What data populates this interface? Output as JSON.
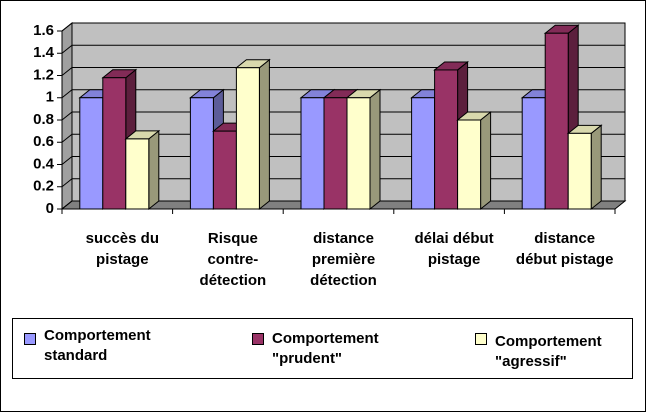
{
  "chart_data": {
    "type": "bar3d",
    "categories": [
      "succès du pistage",
      "Risque contre-détection",
      "distance première détection",
      "délai début pistage",
      "distance début pistage"
    ],
    "series": [
      {
        "name": "Comportement standard",
        "color": "#9999ff",
        "values": [
          1.0,
          1.0,
          1.0,
          1.0,
          1.0
        ]
      },
      {
        "name": "Comportement \"prudent\"",
        "color": "#993366",
        "values": [
          1.18,
          0.7,
          1.0,
          1.25,
          1.58
        ]
      },
      {
        "name": "Comportement \"agressif\"",
        "color": "#ffffcc",
        "values": [
          0.63,
          1.27,
          1.0,
          0.8,
          0.68
        ]
      }
    ],
    "ylim": [
      0,
      1.6
    ],
    "yticks": [
      0,
      0.2,
      0.4,
      0.6,
      0.8,
      1,
      1.2,
      1.4,
      1.6
    ],
    "grid": true,
    "legend": "bottom"
  }
}
